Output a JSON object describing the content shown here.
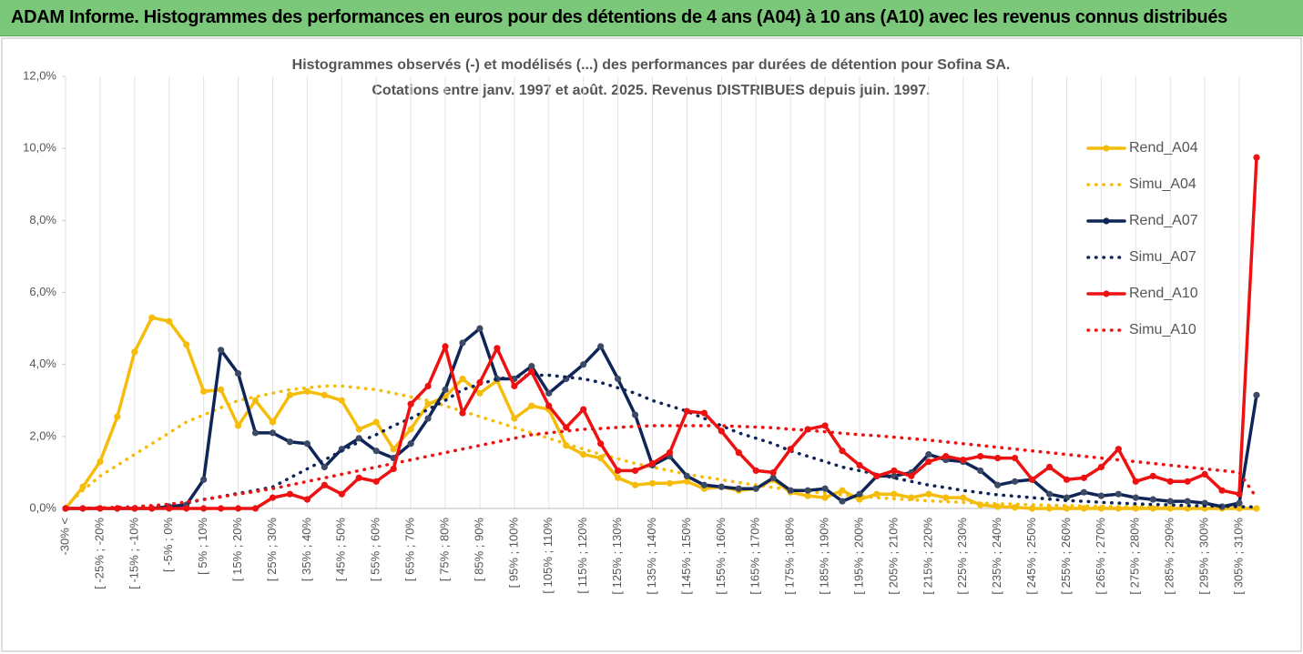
{
  "header": {
    "title": "ADAM Informe. Histogrammes des performances en euros pour des détentions de 4 ans (A04) à 10 ans (A10) avec les revenus connus distribués"
  },
  "chart_data": {
    "type": "line",
    "title": "Histogrammes observés (-) et modélisés (...) des performances par durées de détention pour Sofina SA.",
    "subtitle": "Cotations entre janv. 1997 et août. 2025. Revenus DISTRIBUES depuis juin. 1997.",
    "categories": [
      "-30% <",
      null,
      "[ -25% ; -20%",
      null,
      "[ -15% ; -10%",
      null,
      "[ -5% ; 0%",
      null,
      "[ 5% ; 10%",
      null,
      "[ 15% ; 20%",
      null,
      "[ 25% ; 30%",
      null,
      "[ 35% ; 40%",
      null,
      "[ 45% ; 50%",
      null,
      "[ 55% ; 60%",
      null,
      "[ 65% ; 70%",
      null,
      "[ 75% ; 80%",
      null,
      "[ 85% ; 90%",
      null,
      "[ 95% ; 100%",
      null,
      "[ 105% ; 110%",
      null,
      "[ 115% ; 120%",
      null,
      "[ 125% ; 130%",
      null,
      "[ 135% ; 140%",
      null,
      "[ 145% ; 150%",
      null,
      "[ 155% ; 160%",
      null,
      "[ 165% ; 170%",
      null,
      "[ 175% ; 180%",
      null,
      "[ 185% ; 190%",
      null,
      "[ 195% ; 200%",
      null,
      "[ 205% ; 210%",
      null,
      "[ 215% ; 220%",
      null,
      "[ 225% ; 230%",
      null,
      "[ 235% ; 240%",
      null,
      "[ 245% ; 250%",
      null,
      "[ 255% ; 260%",
      null,
      "[ 265% ; 270%",
      null,
      "[ 275% ; 280%",
      null,
      "[ 285% ; 290%",
      null,
      "[ 295% ; 300%",
      null,
      "[ 305% ; 310%",
      null
    ],
    "series": [
      {
        "name": "Rend_A04",
        "color": "#f5bd0a",
        "style": "solid",
        "markers": true,
        "values": [
          0,
          0.6,
          1.3,
          2.55,
          4.35,
          5.3,
          5.2,
          4.55,
          3.25,
          3.3,
          2.3,
          3.0,
          2.4,
          3.15,
          3.25,
          3.15,
          3.0,
          2.2,
          2.4,
          1.65,
          2.2,
          2.9,
          3.1,
          3.6,
          3.2,
          3.55,
          2.5,
          2.85,
          2.75,
          1.75,
          1.5,
          1.4,
          0.85,
          0.65,
          0.7,
          0.7,
          0.75,
          0.55,
          0.6,
          0.5,
          0.55,
          0.8,
          0.45,
          0.35,
          0.3,
          0.5,
          0.25,
          0.4,
          0.4,
          0.3,
          0.4,
          0.3,
          0.3,
          0.1,
          0.05,
          0.03,
          0,
          0,
          0,
          0,
          0,
          0,
          0,
          0,
          0,
          0,
          0,
          0,
          0,
          0
        ]
      },
      {
        "name": "Simu_A04",
        "color": "#f5bd0a",
        "style": "dotted",
        "markers": false,
        "values": [
          0.05,
          0.5,
          0.9,
          1.2,
          1.5,
          1.8,
          2.1,
          2.4,
          2.6,
          2.8,
          3.0,
          3.1,
          3.2,
          3.3,
          3.35,
          3.4,
          3.4,
          3.35,
          3.3,
          3.2,
          3.1,
          3.0,
          2.85,
          2.7,
          2.55,
          2.4,
          2.25,
          2.1,
          1.95,
          1.8,
          1.65,
          1.5,
          1.38,
          1.25,
          1.15,
          1.05,
          0.95,
          0.87,
          0.8,
          0.72,
          0.65,
          0.58,
          0.52,
          0.47,
          0.42,
          0.38,
          0.34,
          0.3,
          0.27,
          0.24,
          0.21,
          0.19,
          0.17,
          0.15,
          0.13,
          0.12,
          0.1,
          0.09,
          0.08,
          0.07,
          0.06,
          0.05,
          0.05,
          0.04,
          0.04,
          0.03,
          0.03,
          0.02,
          0.02,
          0.02
        ]
      },
      {
        "name": "Rend_A07",
        "color": "#0f2557",
        "style": "solid",
        "markers": true,
        "values": [
          0,
          0,
          0,
          0,
          0,
          0,
          0.05,
          0.1,
          0.8,
          4.4,
          3.75,
          2.1,
          2.1,
          1.85,
          1.8,
          1.15,
          1.65,
          1.95,
          1.6,
          1.4,
          1.8,
          2.5,
          3.3,
          4.6,
          5.0,
          3.6,
          3.6,
          3.95,
          3.2,
          3.6,
          4.0,
          4.5,
          3.6,
          2.6,
          1.2,
          1.45,
          0.9,
          0.65,
          0.6,
          0.55,
          0.55,
          0.85,
          0.5,
          0.5,
          0.55,
          0.2,
          0.4,
          0.9,
          0.9,
          1.0,
          1.5,
          1.35,
          1.3,
          1.05,
          0.65,
          0.75,
          0.8,
          0.4,
          0.3,
          0.45,
          0.35,
          0.4,
          0.3,
          0.25,
          0.2,
          0.2,
          0.15,
          0.05,
          0.15,
          3.15
        ]
      },
      {
        "name": "Simu_A07",
        "color": "#0f2557",
        "style": "dotted",
        "markers": false,
        "values": [
          0,
          0,
          0.01,
          0.02,
          0.03,
          0.05,
          0.1,
          0.15,
          0.25,
          0.33,
          0.42,
          0.5,
          0.6,
          0.85,
          1.1,
          1.35,
          1.6,
          1.85,
          2.05,
          2.3,
          2.5,
          2.75,
          3.0,
          3.3,
          3.45,
          3.6,
          3.65,
          3.7,
          3.7,
          3.65,
          3.6,
          3.5,
          3.35,
          3.2,
          3.0,
          2.85,
          2.7,
          2.5,
          2.3,
          2.1,
          1.95,
          1.8,
          1.6,
          1.45,
          1.3,
          1.15,
          1.05,
          0.95,
          0.85,
          0.75,
          0.65,
          0.58,
          0.5,
          0.44,
          0.38,
          0.34,
          0.3,
          0.26,
          0.22,
          0.2,
          0.17,
          0.15,
          0.13,
          0.11,
          0.1,
          0.08,
          0.07,
          0.06,
          0.05,
          0.04
        ]
      },
      {
        "name": "Rend_A10",
        "color": "#ee1111",
        "style": "solid",
        "markers": true,
        "values": [
          0,
          0,
          0,
          0,
          0,
          0,
          0,
          0,
          0,
          0,
          0,
          0,
          0.3,
          0.4,
          0.25,
          0.65,
          0.4,
          0.85,
          0.75,
          1.1,
          2.9,
          3.4,
          4.5,
          2.65,
          3.5,
          4.45,
          3.4,
          3.8,
          2.85,
          2.25,
          2.75,
          1.8,
          1.05,
          1.05,
          1.25,
          1.55,
          2.7,
          2.65,
          2.15,
          1.55,
          1.05,
          1.0,
          1.65,
          2.2,
          2.3,
          1.6,
          1.2,
          0.9,
          1.05,
          0.9,
          1.3,
          1.45,
          1.35,
          1.45,
          1.4,
          1.4,
          0.8,
          1.15,
          0.8,
          0.85,
          1.15,
          1.65,
          0.75,
          0.9,
          0.75,
          0.75,
          0.95,
          0.5,
          0.4,
          9.75
        ]
      },
      {
        "name": "Simu_A10",
        "color": "#ee1111",
        "style": "dotted",
        "markers": false,
        "values": [
          0,
          0.01,
          0.02,
          0.03,
          0.05,
          0.08,
          0.12,
          0.18,
          0.25,
          0.32,
          0.4,
          0.47,
          0.55,
          0.65,
          0.75,
          0.85,
          0.95,
          1.05,
          1.15,
          1.25,
          1.35,
          1.45,
          1.55,
          1.65,
          1.75,
          1.85,
          1.95,
          2.05,
          2.1,
          2.15,
          2.2,
          2.22,
          2.25,
          2.28,
          2.3,
          2.3,
          2.3,
          2.3,
          2.3,
          2.28,
          2.26,
          2.24,
          2.2,
          2.17,
          2.13,
          2.09,
          2.05,
          2.02,
          1.98,
          1.94,
          1.9,
          1.85,
          1.8,
          1.75,
          1.7,
          1.65,
          1.6,
          1.55,
          1.5,
          1.45,
          1.4,
          1.35,
          1.3,
          1.25,
          1.2,
          1.15,
          1.1,
          1.05,
          1.0,
          0.3
        ]
      }
    ],
    "ylim": [
      0,
      12
    ],
    "yticks": [
      {
        "value": 0,
        "label": "0,0%"
      },
      {
        "value": 2,
        "label": "2,0%"
      },
      {
        "value": 4,
        "label": "4,0%"
      },
      {
        "value": 6,
        "label": "6,0%"
      },
      {
        "value": 8,
        "label": "8,0%"
      },
      {
        "value": 10,
        "label": "10,0%"
      },
      {
        "value": 12,
        "label": "12,0%"
      }
    ],
    "grid": true,
    "legend": "right"
  }
}
